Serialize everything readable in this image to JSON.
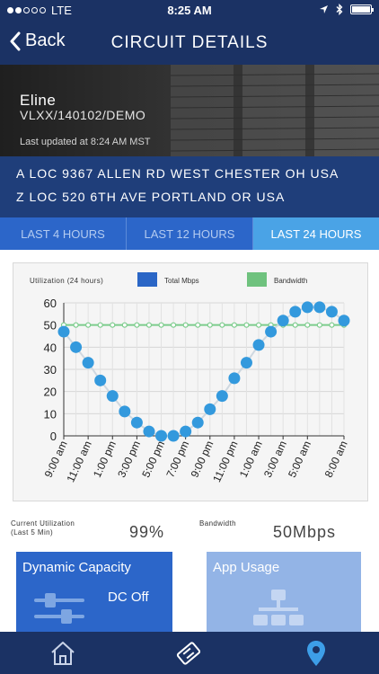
{
  "status_bar": {
    "carrier": "LTE",
    "time": "8:25 AM"
  },
  "nav": {
    "back_label": "Back",
    "title": "CIRCUIT DETAILS"
  },
  "circuit": {
    "name": "Eline",
    "id": "VLXX/140102/DEMO",
    "last_updated": "Last updated at 8:24 AM MST"
  },
  "locations": {
    "a": "A LOC 9367 ALLEN RD WEST CHESTER OH USA",
    "z": "Z LOC 520 6TH AVE PORTLAND OR USA"
  },
  "time_ranges": [
    {
      "label": "LAST 4 HOURS",
      "active": false
    },
    {
      "label": "LAST 12 HOURS",
      "active": false
    },
    {
      "label": "LAST 24 HOURS",
      "active": true
    }
  ],
  "chart_data": {
    "type": "line",
    "title": "Utilization (24 hours)",
    "x": [
      "9:00 am",
      "10:00 am",
      "11:00 am",
      "12:00 pm",
      "1:00 pm",
      "2:00 pm",
      "3:00 pm",
      "4:00 pm",
      "5:00 pm",
      "6:00 pm",
      "7:00 pm",
      "8:00 pm",
      "9:00 pm",
      "10:00 pm",
      "11:00 pm",
      "12:00 am",
      "1:00 am",
      "2:00 am",
      "3:00 am",
      "4:00 am",
      "5:00 am",
      "6:00 am",
      "7:00 am",
      "8:00 am"
    ],
    "x_tick_labels": [
      "9:00 am",
      "11:00 am",
      "1:00 pm",
      "3:00 pm",
      "5:00 pm",
      "7:00 pm",
      "9:00 pm",
      "11:00 pm",
      "1:00 am",
      "3:00 am",
      "5:00 am",
      "8:00 am"
    ],
    "series": [
      {
        "name": "Total Mbps",
        "color": "#3399dd",
        "values": [
          47,
          40,
          33,
          25,
          18,
          11,
          6,
          2,
          0,
          0,
          2,
          6,
          12,
          18,
          26,
          33,
          41,
          47,
          52,
          56,
          58,
          58,
          56,
          52
        ]
      },
      {
        "name": "Bandwidth",
        "color": "#7ccc8c",
        "values": [
          50,
          50,
          50,
          50,
          50,
          50,
          50,
          50,
          50,
          50,
          50,
          50,
          50,
          50,
          50,
          50,
          50,
          50,
          50,
          50,
          50,
          50,
          50,
          50
        ]
      }
    ],
    "y_ticks": [
      0,
      10,
      20,
      30,
      40,
      50,
      60
    ],
    "ylim": [
      0,
      60
    ],
    "grid": true,
    "legend_position": "top"
  },
  "legend_colors": {
    "total": "#2a66c6",
    "bandwidth": "#6fc27e"
  },
  "metrics": {
    "current_label_1": "Current Utilization",
    "current_label_2": "(Last 5 Min)",
    "current_value": "99%",
    "bandwidth_label": "Bandwidth",
    "bandwidth_value": "50Mbps"
  },
  "tiles": {
    "dynamic_capacity": {
      "title": "Dynamic Capacity",
      "status": "DC Off"
    },
    "app_usage": {
      "title": "App Usage"
    }
  },
  "tab_bar": {
    "items": [
      "home-icon",
      "ticket-icon",
      "location-pin-icon"
    ]
  }
}
